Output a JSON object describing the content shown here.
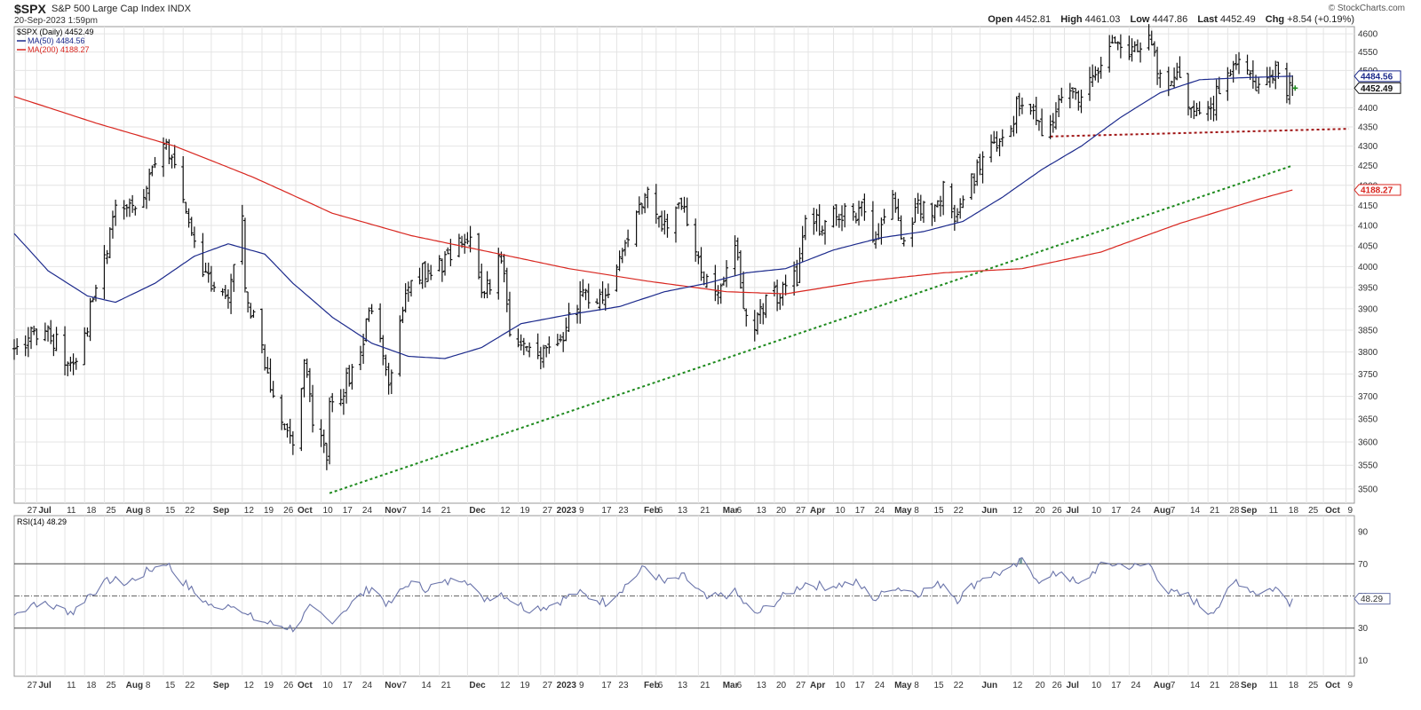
{
  "header": {
    "symbol": "$SPX",
    "description": "S&P 500 Large Cap Index  INDX",
    "date": "20-Sep-2023 1:59pm",
    "brand": "© StockCharts.com",
    "open_label": "Open",
    "open": "4452.81",
    "high_label": "High",
    "high": "4461.03",
    "low_label": "Low",
    "low": "4447.86",
    "last_label": "Last",
    "last": "4452.49",
    "chg_label": "Chg",
    "chg": "+8.54 (+0.19%)"
  },
  "legend": {
    "price": "$SPX (Daily) 4452.49",
    "ma50": "MA(50) 4484.56",
    "ma200": "MA(200) 4188.27",
    "rsi": "RSI(14) 48.29"
  },
  "colors": {
    "price": "#111111",
    "ma50": "#1c2a8c",
    "ma200": "#d8261f",
    "trend_green": "#1e8a1e",
    "trend_red": "#a01515",
    "rsi_line": "#6a74aa",
    "grid": "#e4e4e4"
  },
  "chart_data": [
    {
      "type": "line",
      "panel": "price",
      "title": "$SPX (Daily) 4452.49",
      "y_scale": "log",
      "ylim": [
        3470,
        4620
      ],
      "yticks": [
        3500,
        3550,
        3600,
        3650,
        3700,
        3750,
        3800,
        3850,
        3900,
        3950,
        4000,
        4050,
        4100,
        4150,
        4200,
        4250,
        4300,
        4350,
        4400,
        4450,
        4500,
        4550,
        4600
      ],
      "xlim": [
        "2022-06-23",
        "2023-10-12"
      ],
      "x_ticks": [
        {
          "date": "2022-06-27",
          "label": "27"
        },
        {
          "date": "2022-07-01",
          "label": "Jul"
        },
        {
          "date": "2022-07-11",
          "label": "11"
        },
        {
          "date": "2022-07-18",
          "label": "18"
        },
        {
          "date": "2022-07-25",
          "label": "25"
        },
        {
          "date": "2022-08-01",
          "label": "Aug"
        },
        {
          "date": "2022-08-08",
          "label": "8"
        },
        {
          "date": "2022-08-15",
          "label": "15"
        },
        {
          "date": "2022-08-22",
          "label": "22"
        },
        {
          "date": "2022-09-01",
          "label": "Sep"
        },
        {
          "date": "2022-09-12",
          "label": "12"
        },
        {
          "date": "2022-09-19",
          "label": "19"
        },
        {
          "date": "2022-09-26",
          "label": "26"
        },
        {
          "date": "2022-10-01",
          "label": "Oct"
        },
        {
          "date": "2022-10-10",
          "label": "10"
        },
        {
          "date": "2022-10-17",
          "label": "17"
        },
        {
          "date": "2022-10-24",
          "label": "24"
        },
        {
          "date": "2022-11-01",
          "label": "Nov"
        },
        {
          "date": "2022-11-07",
          "label": "7"
        },
        {
          "date": "2022-11-14",
          "label": "14"
        },
        {
          "date": "2022-11-21",
          "label": "21"
        },
        {
          "date": "2022-12-01",
          "label": "Dec"
        },
        {
          "date": "2022-12-12",
          "label": "12"
        },
        {
          "date": "2022-12-19",
          "label": "19"
        },
        {
          "date": "2022-12-27",
          "label": "27"
        },
        {
          "date": "2023-01-01",
          "label": "2023"
        },
        {
          "date": "2023-01-09",
          "label": "9"
        },
        {
          "date": "2023-01-17",
          "label": "17"
        },
        {
          "date": "2023-01-23",
          "label": "23"
        },
        {
          "date": "2023-02-01",
          "label": "Feb"
        },
        {
          "date": "2023-02-06",
          "label": "6"
        },
        {
          "date": "2023-02-13",
          "label": "13"
        },
        {
          "date": "2023-02-21",
          "label": "21"
        },
        {
          "date": "2023-03-01",
          "label": "Mar"
        },
        {
          "date": "2023-03-06",
          "label": "6"
        },
        {
          "date": "2023-03-13",
          "label": "13"
        },
        {
          "date": "2023-03-20",
          "label": "20"
        },
        {
          "date": "2023-03-27",
          "label": "27"
        },
        {
          "date": "2023-04-01",
          "label": "Apr"
        },
        {
          "date": "2023-04-10",
          "label": "10"
        },
        {
          "date": "2023-04-17",
          "label": "17"
        },
        {
          "date": "2023-04-24",
          "label": "24"
        },
        {
          "date": "2023-05-01",
          "label": "May"
        },
        {
          "date": "2023-05-08",
          "label": "8"
        },
        {
          "date": "2023-05-15",
          "label": "15"
        },
        {
          "date": "2023-05-22",
          "label": "22"
        },
        {
          "date": "2023-06-01",
          "label": "Jun"
        },
        {
          "date": "2023-06-12",
          "label": "12"
        },
        {
          "date": "2023-06-20",
          "label": "20"
        },
        {
          "date": "2023-06-26",
          "label": "26"
        },
        {
          "date": "2023-07-01",
          "label": "Jul"
        },
        {
          "date": "2023-07-10",
          "label": "10"
        },
        {
          "date": "2023-07-17",
          "label": "17"
        },
        {
          "date": "2023-07-24",
          "label": "24"
        },
        {
          "date": "2023-08-01",
          "label": "Aug"
        },
        {
          "date": "2023-08-07",
          "label": "7"
        },
        {
          "date": "2023-08-14",
          "label": "14"
        },
        {
          "date": "2023-08-21",
          "label": "21"
        },
        {
          "date": "2023-08-28",
          "label": "28"
        },
        {
          "date": "2023-09-01",
          "label": "Sep"
        },
        {
          "date": "2023-09-11",
          "label": "11"
        },
        {
          "date": "2023-09-18",
          "label": "18"
        },
        {
          "date": "2023-09-25",
          "label": "25"
        },
        {
          "date": "2023-10-01",
          "label": "Oct"
        },
        {
          "date": "2023-10-09",
          "label": "9"
        }
      ],
      "price_keypoints": [
        [
          "2022-06-23",
          3790
        ],
        [
          "2022-06-28",
          3840
        ],
        [
          "2022-07-01",
          3830
        ],
        [
          "2022-07-06",
          3840
        ],
        [
          "2022-07-14",
          3760
        ],
        [
          "2022-07-18",
          3840
        ],
        [
          "2022-07-22",
          3950
        ],
        [
          "2022-07-29",
          4130
        ],
        [
          "2022-08-05",
          4150
        ],
        [
          "2022-08-10",
          4210
        ],
        [
          "2022-08-16",
          4305
        ],
        [
          "2022-08-19",
          4230
        ],
        [
          "2022-08-23",
          4130
        ],
        [
          "2022-08-26",
          4050
        ],
        [
          "2022-08-31",
          3960
        ],
        [
          "2022-09-06",
          3910
        ],
        [
          "2022-09-12",
          4110
        ],
        [
          "2022-09-13",
          3935
        ],
        [
          "2022-09-16",
          3870
        ],
        [
          "2022-09-23",
          3700
        ],
        [
          "2022-09-30",
          3590
        ],
        [
          "2022-10-04",
          3780
        ],
        [
          "2022-10-07",
          3640
        ],
        [
          "2022-10-12",
          3580
        ],
        [
          "2022-10-13",
          3670
        ],
        [
          "2022-10-21",
          3750
        ],
        [
          "2022-10-28",
          3900
        ],
        [
          "2022-11-03",
          3720
        ],
        [
          "2022-11-10",
          3960
        ],
        [
          "2022-11-15",
          3990
        ],
        [
          "2022-11-22",
          4000
        ],
        [
          "2022-11-30",
          4080
        ],
        [
          "2022-12-01",
          4075
        ],
        [
          "2022-12-07",
          3930
        ],
        [
          "2022-12-13",
          4020
        ],
        [
          "2022-12-16",
          3850
        ],
        [
          "2022-12-22",
          3820
        ],
        [
          "2022-12-28",
          3790
        ],
        [
          "2023-01-03",
          3830
        ],
        [
          "2023-01-10",
          3920
        ],
        [
          "2023-01-18",
          3930
        ],
        [
          "2023-01-25",
          4020
        ],
        [
          "2023-02-02",
          4180
        ],
        [
          "2023-02-10",
          4090
        ],
        [
          "2023-02-15",
          4150
        ],
        [
          "2023-02-21",
          4000
        ],
        [
          "2023-02-24",
          3970
        ],
        [
          "2023-03-01",
          3950
        ],
        [
          "2023-03-06",
          4050
        ],
        [
          "2023-03-09",
          3920
        ],
        [
          "2023-03-13",
          3850
        ],
        [
          "2023-03-17",
          3920
        ],
        [
          "2023-03-22",
          3940
        ],
        [
          "2023-03-28",
          3975
        ],
        [
          "2023-03-31",
          4110
        ],
        [
          "2023-04-06",
          4100
        ],
        [
          "2023-04-14",
          4140
        ],
        [
          "2023-04-21",
          4135
        ],
        [
          "2023-04-25",
          4070
        ],
        [
          "2023-05-01",
          4170
        ],
        [
          "2023-05-04",
          4060
        ],
        [
          "2023-05-10",
          4140
        ],
        [
          "2023-05-15",
          4130
        ],
        [
          "2023-05-19",
          4190
        ],
        [
          "2023-05-24",
          4115
        ],
        [
          "2023-06-02",
          4280
        ],
        [
          "2023-06-09",
          4300
        ],
        [
          "2023-06-15",
          4420
        ],
        [
          "2023-06-23",
          4350
        ],
        [
          "2023-06-26",
          4330
        ],
        [
          "2023-06-30",
          4450
        ],
        [
          "2023-07-06",
          4410
        ],
        [
          "2023-07-13",
          4510
        ],
        [
          "2023-07-19",
          4560
        ],
        [
          "2023-07-27",
          4540
        ],
        [
          "2023-07-31",
          4590
        ],
        [
          "2023-08-04",
          4480
        ],
        [
          "2023-08-10",
          4470
        ],
        [
          "2023-08-18",
          4370
        ],
        [
          "2023-08-23",
          4420
        ],
        [
          "2023-08-29",
          4500
        ],
        [
          "2023-09-01",
          4540
        ],
        [
          "2023-09-06",
          4465
        ],
        [
          "2023-09-08",
          4460
        ],
        [
          "2023-09-12",
          4460
        ],
        [
          "2023-09-14",
          4500
        ],
        [
          "2023-09-19",
          4443
        ],
        [
          "2023-09-20",
          4452.49
        ]
      ],
      "ma50_keypoints": [
        [
          "2022-06-23",
          4080
        ],
        [
          "2022-07-05",
          3990
        ],
        [
          "2022-07-19",
          3930
        ],
        [
          "2022-07-29",
          3915
        ],
        [
          "2022-08-12",
          3960
        ],
        [
          "2022-08-26",
          4025
        ],
        [
          "2022-09-07",
          4055
        ],
        [
          "2022-09-20",
          4030
        ],
        [
          "2022-09-30",
          3960
        ],
        [
          "2022-10-14",
          3880
        ],
        [
          "2022-10-28",
          3820
        ],
        [
          "2022-11-10",
          3790
        ],
        [
          "2022-11-23",
          3785
        ],
        [
          "2022-12-06",
          3810
        ],
        [
          "2022-12-20",
          3865
        ],
        [
          "2023-01-05",
          3885
        ],
        [
          "2023-01-24",
          3905
        ],
        [
          "2023-02-09",
          3940
        ],
        [
          "2023-02-24",
          3960
        ],
        [
          "2023-03-10",
          3985
        ],
        [
          "2023-03-24",
          3995
        ],
        [
          "2023-04-10",
          4040
        ],
        [
          "2023-04-27",
          4070
        ],
        [
          "2023-05-12",
          4085
        ],
        [
          "2023-05-26",
          4110
        ],
        [
          "2023-06-09",
          4170
        ],
        [
          "2023-06-23",
          4240
        ],
        [
          "2023-07-07",
          4300
        ],
        [
          "2023-07-21",
          4375
        ],
        [
          "2023-08-04",
          4440
        ],
        [
          "2023-08-18",
          4475
        ],
        [
          "2023-09-01",
          4480
        ],
        [
          "2023-09-20",
          4484.56
        ]
      ],
      "ma200_keypoints": [
        [
          "2022-06-23",
          4430
        ],
        [
          "2022-07-22",
          4360
        ],
        [
          "2022-08-19",
          4300
        ],
        [
          "2022-09-16",
          4220
        ],
        [
          "2022-10-14",
          4130
        ],
        [
          "2022-11-11",
          4075
        ],
        [
          "2022-12-09",
          4035
        ],
        [
          "2023-01-06",
          3995
        ],
        [
          "2023-02-03",
          3965
        ],
        [
          "2023-03-03",
          3940
        ],
        [
          "2023-03-24",
          3935
        ],
        [
          "2023-04-21",
          3965
        ],
        [
          "2023-05-19",
          3985
        ],
        [
          "2023-06-16",
          3995
        ],
        [
          "2023-07-14",
          4035
        ],
        [
          "2023-08-11",
          4105
        ],
        [
          "2023-09-08",
          4165
        ],
        [
          "2023-09-20",
          4188.27
        ]
      ],
      "trendlines": [
        {
          "color": "trend_green",
          "from": [
            "2022-10-13",
            3491
          ],
          "to": [
            "2023-09-20",
            4250
          ]
        },
        {
          "color": "trend_red",
          "from": [
            "2023-06-26",
            4325
          ],
          "to": [
            "2023-10-10",
            4345
          ]
        }
      ],
      "right_labels": [
        "4484.56",
        "4452.49",
        "4188.27"
      ]
    },
    {
      "type": "line",
      "panel": "rsi",
      "title": "RSI(14) 48.29",
      "ylim": [
        0,
        100
      ],
      "yticks": [
        10,
        30,
        50,
        70,
        90
      ],
      "reference_lines": [
        30,
        50,
        70
      ],
      "last_label": "48.29",
      "rsi_keypoints": [
        [
          "2022-06-23",
          38
        ],
        [
          "2022-06-30",
          46
        ],
        [
          "2022-07-05",
          44
        ],
        [
          "2022-07-14",
          40
        ],
        [
          "2022-07-19",
          50
        ],
        [
          "2022-07-27",
          60
        ],
        [
          "2022-08-02",
          58
        ],
        [
          "2022-08-10",
          66
        ],
        [
          "2022-08-16",
          71
        ],
        [
          "2022-08-19",
          64
        ],
        [
          "2022-08-26",
          52
        ],
        [
          "2022-09-02",
          42
        ],
        [
          "2022-09-09",
          46
        ],
        [
          "2022-09-13",
          38
        ],
        [
          "2022-09-21",
          33
        ],
        [
          "2022-09-30",
          30
        ],
        [
          "2022-10-06",
          42
        ],
        [
          "2022-10-13",
          34
        ],
        [
          "2022-10-20",
          44
        ],
        [
          "2022-10-28",
          56
        ],
        [
          "2022-11-03",
          44
        ],
        [
          "2022-11-10",
          58
        ],
        [
          "2022-11-16",
          55
        ],
        [
          "2022-11-23",
          58
        ],
        [
          "2022-11-30",
          62
        ],
        [
          "2022-12-06",
          48
        ],
        [
          "2022-12-13",
          52
        ],
        [
          "2022-12-22",
          42
        ],
        [
          "2022-12-30",
          44
        ],
        [
          "2023-01-09",
          52
        ],
        [
          "2023-01-19",
          46
        ],
        [
          "2023-01-27",
          58
        ],
        [
          "2023-02-02",
          68
        ],
        [
          "2023-02-09",
          58
        ],
        [
          "2023-02-16",
          62
        ],
        [
          "2023-02-24",
          48
        ],
        [
          "2023-03-06",
          52
        ],
        [
          "2023-03-13",
          38
        ],
        [
          "2023-03-20",
          46
        ],
        [
          "2023-03-31",
          58
        ],
        [
          "2023-04-06",
          56
        ],
        [
          "2023-04-18",
          58
        ],
        [
          "2023-04-25",
          48
        ],
        [
          "2023-05-01",
          56
        ],
        [
          "2023-05-10",
          52
        ],
        [
          "2023-05-19",
          58
        ],
        [
          "2023-05-24",
          48
        ],
        [
          "2023-06-02",
          62
        ],
        [
          "2023-06-12",
          66
        ],
        [
          "2023-06-16",
          72
        ],
        [
          "2023-06-23",
          58
        ],
        [
          "2023-06-30",
          66
        ],
        [
          "2023-07-06",
          56
        ],
        [
          "2023-07-13",
          68
        ],
        [
          "2023-07-19",
          70
        ],
        [
          "2023-07-27",
          68
        ],
        [
          "2023-07-31",
          70
        ],
        [
          "2023-08-07",
          52
        ],
        [
          "2023-08-14",
          50
        ],
        [
          "2023-08-21",
          40
        ],
        [
          "2023-08-25",
          44
        ],
        [
          "2023-08-31",
          60
        ],
        [
          "2023-09-07",
          52
        ],
        [
          "2023-09-14",
          55
        ],
        [
          "2023-09-19",
          46
        ],
        [
          "2023-09-20",
          48.29
        ]
      ]
    }
  ]
}
